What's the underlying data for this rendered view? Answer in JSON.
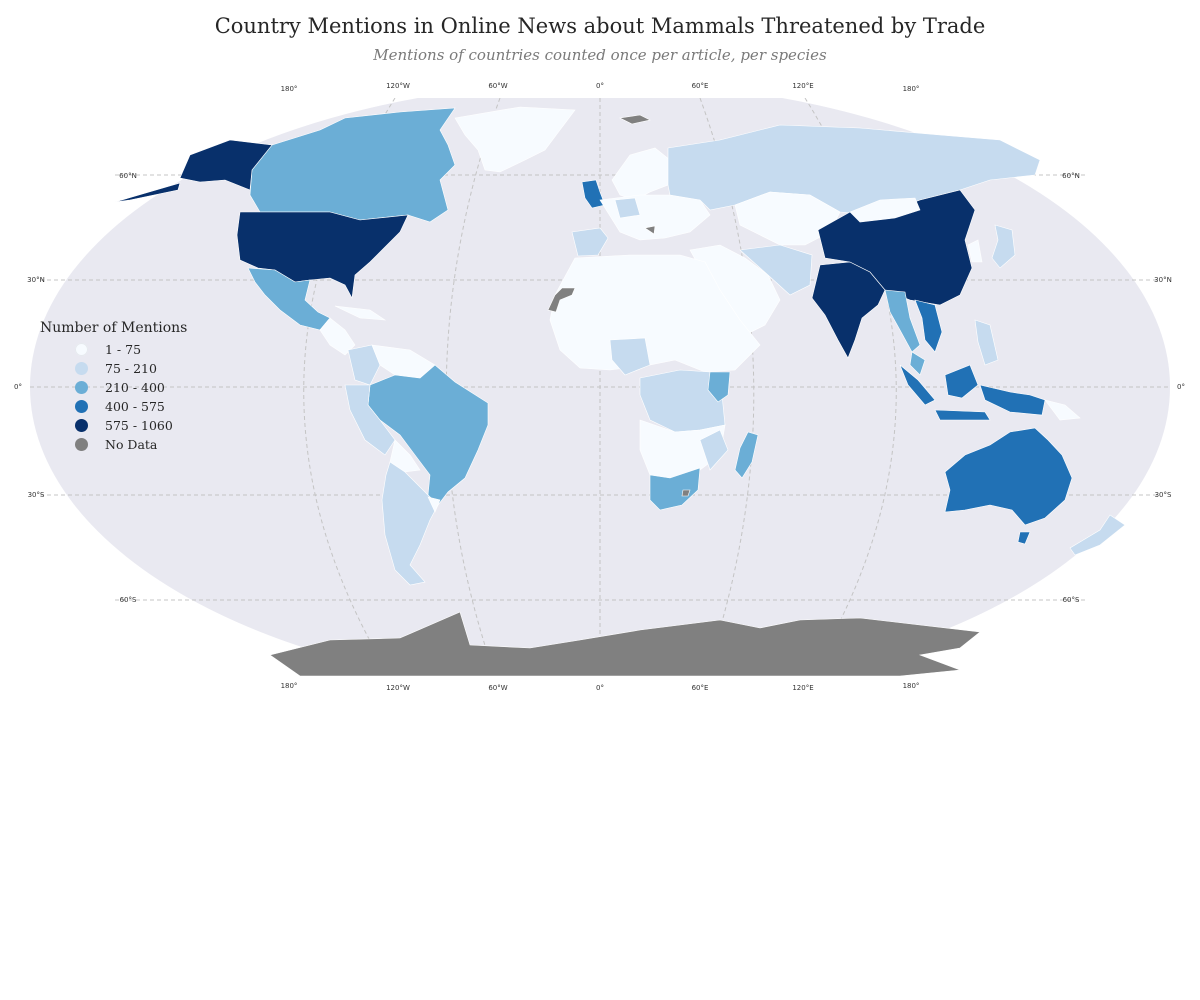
{
  "title": "Country Mentions in Online News about Mammals Threatened by Trade",
  "subtitle": "Mentions of countries counted once per article, per species",
  "map": {
    "projection": "robinson",
    "ocean_color": "#e9e9f1",
    "graticule": {
      "lat_labels": [
        "60°N",
        "30°N",
        "0°",
        "30°S",
        "60°S"
      ],
      "lon_labels": [
        "180°",
        "120°W",
        "60°W",
        "0°",
        "60°E",
        "120°E",
        "180°"
      ]
    }
  },
  "legend": {
    "title": "Number of Mentions",
    "items": [
      {
        "label": "1 - 75",
        "color": "#f7fbff"
      },
      {
        "label": "75 - 210",
        "color": "#c6dbef"
      },
      {
        "label": "210 - 400",
        "color": "#6baed6"
      },
      {
        "label": "400 - 575",
        "color": "#2171b5"
      },
      {
        "label": "575 - 1060",
        "color": "#08306b"
      },
      {
        "label": "No Data",
        "color": "#808080"
      }
    ]
  }
}
